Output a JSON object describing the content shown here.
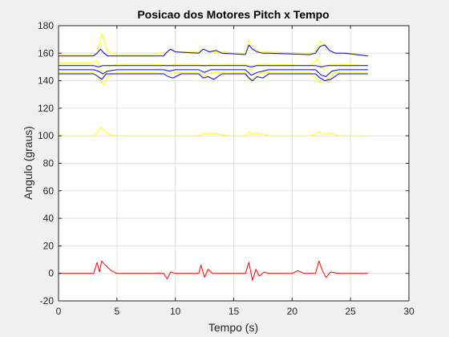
{
  "figure": {
    "background": "#f0f0f0",
    "axes_background": "#ffffff"
  },
  "chart_data": {
    "type": "line",
    "title": "Posicao dos Motores Pitch x Tempo",
    "xlabel": "Tempo (s)",
    "ylabel": "Angulo (graus)",
    "xlim": [
      0,
      30
    ],
    "ylim": [
      -20,
      180
    ],
    "xticks": [
      0,
      5,
      10,
      15,
      20,
      25,
      30
    ],
    "yticks": [
      -20,
      0,
      20,
      40,
      60,
      80,
      100,
      120,
      140,
      160,
      180
    ],
    "grid": true,
    "colors": {
      "yellow": "#ffff00",
      "blue": "#0000ff",
      "red": "#ff0000"
    },
    "series": [
      {
        "color": "yellow",
        "x": [
          0,
          3.0,
          3.3,
          3.5,
          3.7,
          3.9,
          4.1,
          4.5,
          5.0,
          8.0,
          9.3,
          9.6,
          10.0,
          12.0,
          12.3,
          12.7,
          13.2,
          14.0,
          16.0,
          16.3,
          16.5,
          16.8,
          17.2,
          18.0,
          21.5,
          22.0,
          22.4,
          22.7,
          23.0,
          23.5,
          24.0,
          25.0,
          26.5
        ],
        "y": [
          159,
          159,
          160,
          166,
          174,
          170,
          163,
          160,
          159,
          159,
          161,
          162,
          161,
          161,
          163,
          162,
          161,
          161,
          160,
          170,
          166,
          163,
          161,
          161,
          160,
          161,
          169,
          167,
          163,
          161,
          160,
          160,
          158
        ]
      },
      {
        "color": "yellow",
        "x": [
          0,
          3.0,
          3.3,
          3.6,
          3.9,
          4.2,
          5.0,
          8.0,
          9.5,
          10.0,
          12.0,
          12.4,
          13.0,
          14.0,
          16.0,
          16.4,
          16.7,
          17.2,
          18.0,
          21.5,
          22.2,
          22.5,
          22.8,
          23.3,
          24.0,
          26.5
        ],
        "y": [
          153,
          153,
          155,
          148,
          143,
          150,
          152,
          152,
          151,
          152,
          152,
          150,
          152,
          152,
          152,
          147,
          150,
          152,
          152,
          151,
          156,
          150,
          148,
          152,
          152,
          151
        ]
      },
      {
        "color": "yellow",
        "x": [
          0,
          3.0,
          3.3,
          3.6,
          3.9,
          4.2,
          5.0,
          8.0,
          9.5,
          10.0,
          12.0,
          12.5,
          13.0,
          14.0,
          16.0,
          16.4,
          16.8,
          17.3,
          18.0,
          21.5,
          22.2,
          22.6,
          23.0,
          23.6,
          24.0,
          26.5
        ],
        "y": [
          146,
          146,
          144,
          140,
          137,
          143,
          146,
          146,
          145,
          146,
          146,
          143,
          146,
          146,
          146,
          140,
          143,
          146,
          146,
          146,
          140,
          138,
          141,
          146,
          146,
          146
        ]
      },
      {
        "color": "yellow",
        "x": [
          0,
          3.0,
          3.3,
          3.5,
          3.7,
          3.9,
          4.3,
          5.0,
          9.0,
          12.0,
          12.4,
          12.8,
          13.3,
          13.8,
          14.5,
          16.0,
          16.3,
          16.6,
          17.0,
          17.5,
          18.0,
          21.5,
          22.0,
          22.3,
          22.7,
          23.2,
          24.0,
          26.5
        ],
        "y": [
          100,
          100,
          102,
          105,
          106,
          104,
          101,
          100,
          100,
          100,
          102,
          101,
          102,
          101,
          100,
          100,
          103,
          101,
          102,
          101,
          100,
          100,
          101,
          103,
          101,
          102,
          100,
          100
        ]
      },
      {
        "color": "blue",
        "x": [
          0,
          3.0,
          3.3,
          3.6,
          3.9,
          4.2,
          5.0,
          9.0,
          9.3,
          9.6,
          10.0,
          12.0,
          12.4,
          12.9,
          13.5,
          14.0,
          16.0,
          16.3,
          16.6,
          17.0,
          17.5,
          18.0,
          21.5,
          22.0,
          22.4,
          22.8,
          23.2,
          23.7,
          24.5,
          26.5
        ],
        "y": [
          158,
          158,
          160,
          163,
          160,
          158,
          158,
          158,
          161,
          163,
          161,
          160,
          163,
          161,
          162,
          160,
          159,
          166,
          163,
          161,
          160,
          160,
          159,
          160,
          165,
          166,
          162,
          160,
          160,
          158
        ]
      },
      {
        "color": "blue",
        "x": [
          0,
          3.0,
          3.4,
          3.8,
          4.3,
          5.0,
          9.0,
          12.0,
          16.0,
          16.5,
          17.0,
          18.0,
          22.0,
          22.5,
          23.0,
          24.0,
          26.5
        ],
        "y": [
          151,
          151,
          150,
          151,
          151,
          151,
          151,
          151,
          151,
          150,
          151,
          151,
          151,
          150,
          151,
          151,
          151
        ]
      },
      {
        "color": "blue",
        "x": [
          0,
          3.0,
          3.4,
          3.8,
          4.2,
          5.0,
          9.0,
          9.5,
          10.0,
          12.0,
          12.5,
          13.0,
          16.0,
          16.5,
          17.0,
          18.0,
          22.0,
          22.5,
          22.9,
          23.4,
          24.0,
          26.5
        ],
        "y": [
          148,
          148,
          147,
          145,
          147,
          148,
          148,
          147,
          148,
          148,
          146,
          148,
          148,
          144,
          146,
          148,
          148,
          144,
          143,
          147,
          148,
          148
        ]
      },
      {
        "color": "blue",
        "x": [
          0,
          3.0,
          3.4,
          3.7,
          4.1,
          5.0,
          9.0,
          9.4,
          9.8,
          10.5,
          12.0,
          12.4,
          12.8,
          13.3,
          14.0,
          16.0,
          16.3,
          16.6,
          17.0,
          17.5,
          18.0,
          22.0,
          22.4,
          22.8,
          23.3,
          24.0,
          26.5
        ],
        "y": [
          145,
          145,
          143,
          141,
          145,
          145,
          145,
          143,
          142,
          145,
          145,
          142,
          143,
          141,
          145,
          145,
          142,
          140,
          143,
          142,
          145,
          145,
          142,
          140,
          141,
          145,
          145
        ]
      },
      {
        "color": "red",
        "x": [
          0,
          3.0,
          3.3,
          3.5,
          3.7,
          4.0,
          4.5,
          5.0,
          9.0,
          9.3,
          9.6,
          10.0,
          12.0,
          12.2,
          12.5,
          12.8,
          13.2,
          14.0,
          15.0,
          16.0,
          16.3,
          16.6,
          16.9,
          17.2,
          17.6,
          18.0,
          20.0,
          20.5,
          21.0,
          22.0,
          22.3,
          22.6,
          22.9,
          23.3,
          24.0,
          26.5
        ],
        "y": [
          0,
          0,
          8,
          1,
          9,
          6,
          2,
          0,
          0,
          -4,
          1,
          0,
          0,
          6,
          -3,
          3,
          0,
          0,
          0,
          0,
          8,
          -5,
          3,
          -2,
          1,
          0,
          0,
          2,
          0,
          0,
          9,
          2,
          -3,
          1,
          0,
          0
        ]
      }
    ]
  }
}
